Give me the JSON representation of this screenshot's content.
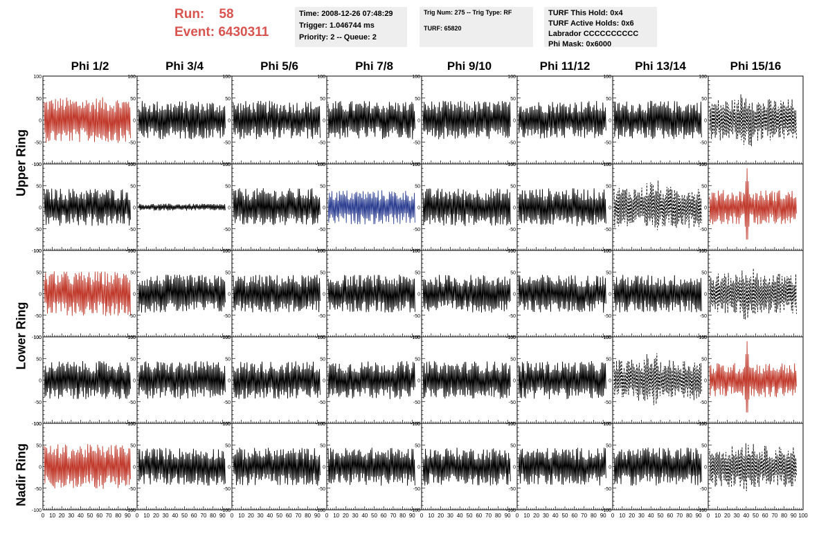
{
  "header": {
    "run_label": "Run:",
    "run_value": "58",
    "event_label": "Event:",
    "event_value": "6430311",
    "run_color": "#d9534f"
  },
  "info_box_1": {
    "time": "Time: 2008-12-26 07:48:29",
    "trigger": "Trigger: 1.046744 ms",
    "priority": "Priority: 2 -- Queue: 2"
  },
  "info_box_2": {
    "trig": "Trig Num: 275 -- Trig Type: RF",
    "turf": "TURF: 65820"
  },
  "info_box_3": {
    "hold": "TURF This Hold: 0x4",
    "active": "TURF Active Holds: 0x6",
    "labrador": "Labrador CCCCCCCCCC",
    "phimask": "Phi Mask: 0x6000"
  },
  "columns": [
    "Phi 1/2",
    "Phi 3/4",
    "Phi 5/6",
    "Phi 7/8",
    "Phi 9/10",
    "Phi 11/12",
    "Phi 13/14",
    "Phi 15/16"
  ],
  "rows": [
    "Upper Ring",
    "Lower Ring",
    "Nadir Ring"
  ],
  "y_ticks": [
    "100",
    "50",
    "0",
    "-50",
    "-100"
  ],
  "x_ticks": [
    "0",
    "10",
    "20",
    "30",
    "40",
    "50",
    "60",
    "70",
    "80",
    "90",
    "100"
  ],
  "colors": {
    "normal": "#000000",
    "red": "#c0392b",
    "blue": "#2c3e91"
  },
  "panel_styles": [
    [
      "red",
      "black",
      "black",
      "black",
      "black",
      "black",
      "black",
      "dashed"
    ],
    [
      "black",
      "black-small",
      "black",
      "blue",
      "black",
      "black",
      "dashed",
      "red-spike"
    ],
    [
      "red",
      "black",
      "black",
      "black",
      "black",
      "black",
      "black",
      "dashed"
    ],
    [
      "black",
      "black",
      "black",
      "black",
      "black",
      "black",
      "dashed",
      "red-spike"
    ],
    [
      "red",
      "black",
      "black",
      "black",
      "black",
      "black",
      "black",
      "dashed"
    ]
  ]
}
